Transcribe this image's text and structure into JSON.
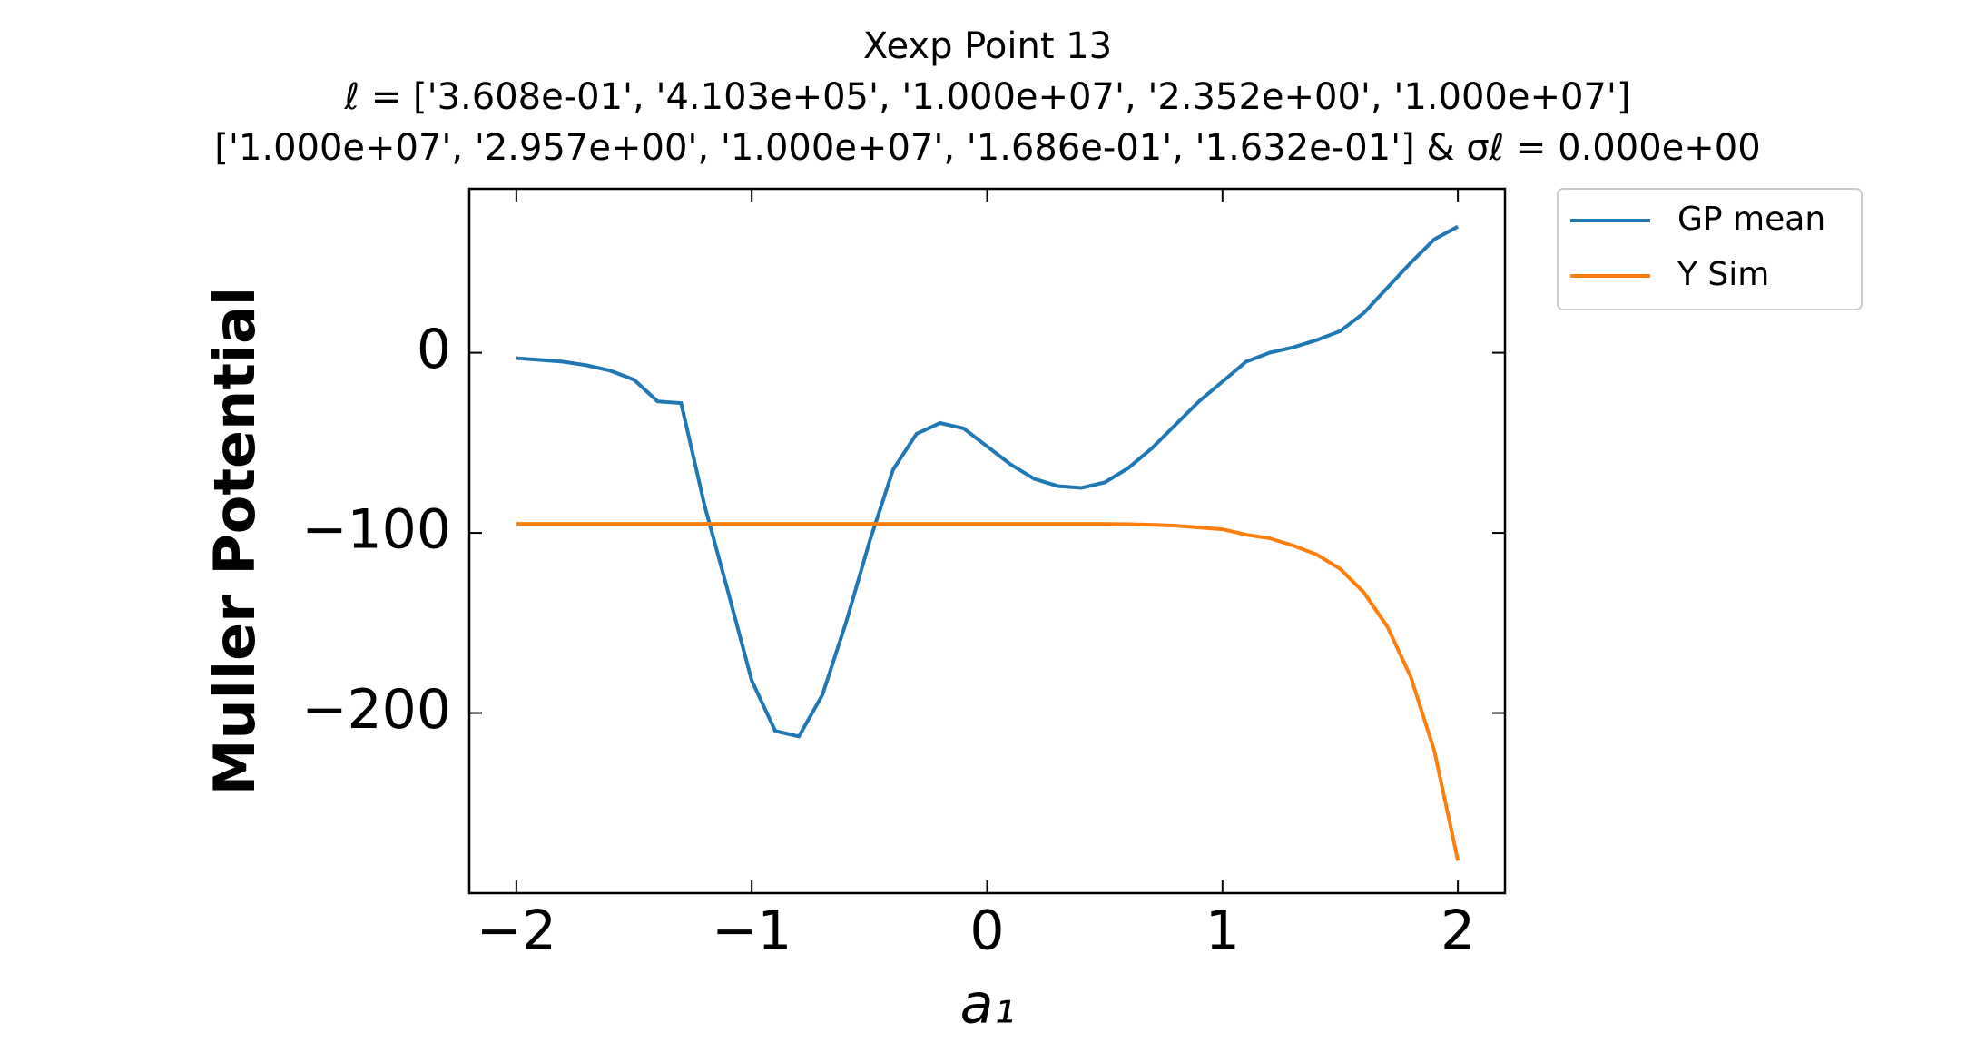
{
  "chart_data": {
    "type": "line",
    "title": [
      "Xexp Point 13",
      "ℓ = ['3.608e-01', '4.103e+05', '1.000e+07', '2.352e+00', '1.000e+07']",
      "['1.000e+07', '2.957e+00', '1.000e+07', '1.686e-01', '1.632e-01'] & σℓ = 0.000e+00"
    ],
    "x_label": "a₁",
    "y_label": "Muller Potential",
    "x": [
      -2,
      -1.9,
      -1.8,
      -1.7,
      -1.6,
      -1.5,
      -1.4,
      -1.3,
      -1.2,
      -1.1,
      -1.0,
      -0.9,
      -0.8,
      -0.7,
      -0.6,
      -0.5,
      -0.4,
      -0.3,
      -0.2,
      -0.1,
      0,
      0.1,
      0.2,
      0.3,
      0.4,
      0.5,
      0.6,
      0.7,
      0.8,
      0.9,
      1.0,
      1.1,
      1.2,
      1.3,
      1.4,
      1.5,
      1.6,
      1.7,
      1.8,
      1.9,
      2.0
    ],
    "series": [
      {
        "name": "GP mean",
        "color": "#1f77b4",
        "values": [
          -3,
          -4,
          -5,
          -7,
          -10,
          -15,
          -27,
          -28,
          -85,
          -133,
          -182,
          -210,
          -213,
          -190,
          -150,
          -105,
          -65,
          -45,
          -39,
          -42,
          -52,
          -62,
          -70,
          -74,
          -75,
          -72,
          -64,
          -53,
          -40,
          -27,
          -16,
          -5,
          0,
          3,
          7,
          12,
          22,
          36,
          50,
          63,
          70
        ]
      },
      {
        "name": "Y Sim",
        "color": "#ff7f0e",
        "values": [
          -95,
          -95,
          -95,
          -95,
          -95,
          -95,
          -95,
          -95,
          -95,
          -95,
          -95,
          -95,
          -95,
          -95,
          -95,
          -95,
          -95,
          -95,
          -95,
          -95,
          -95,
          -95,
          -95,
          -95,
          -95,
          -95,
          -95.2,
          -95.5,
          -96,
          -97,
          -98,
          -101,
          -103,
          -107,
          -112,
          -120,
          -133,
          -152,
          -180,
          -221,
          -282
        ]
      }
    ],
    "xlim": [
      -2.2,
      2.2
    ],
    "ylim": [
      -300,
      91
    ],
    "xticks": [
      {
        "value": -2,
        "label": "−2"
      },
      {
        "value": -1,
        "label": "−1"
      },
      0,
      1,
      2
    ],
    "yticks": [
      {
        "value": -200,
        "label": "−200"
      },
      {
        "value": -100,
        "label": "−100"
      },
      0
    ],
    "legend": "outside-upper-right"
  }
}
